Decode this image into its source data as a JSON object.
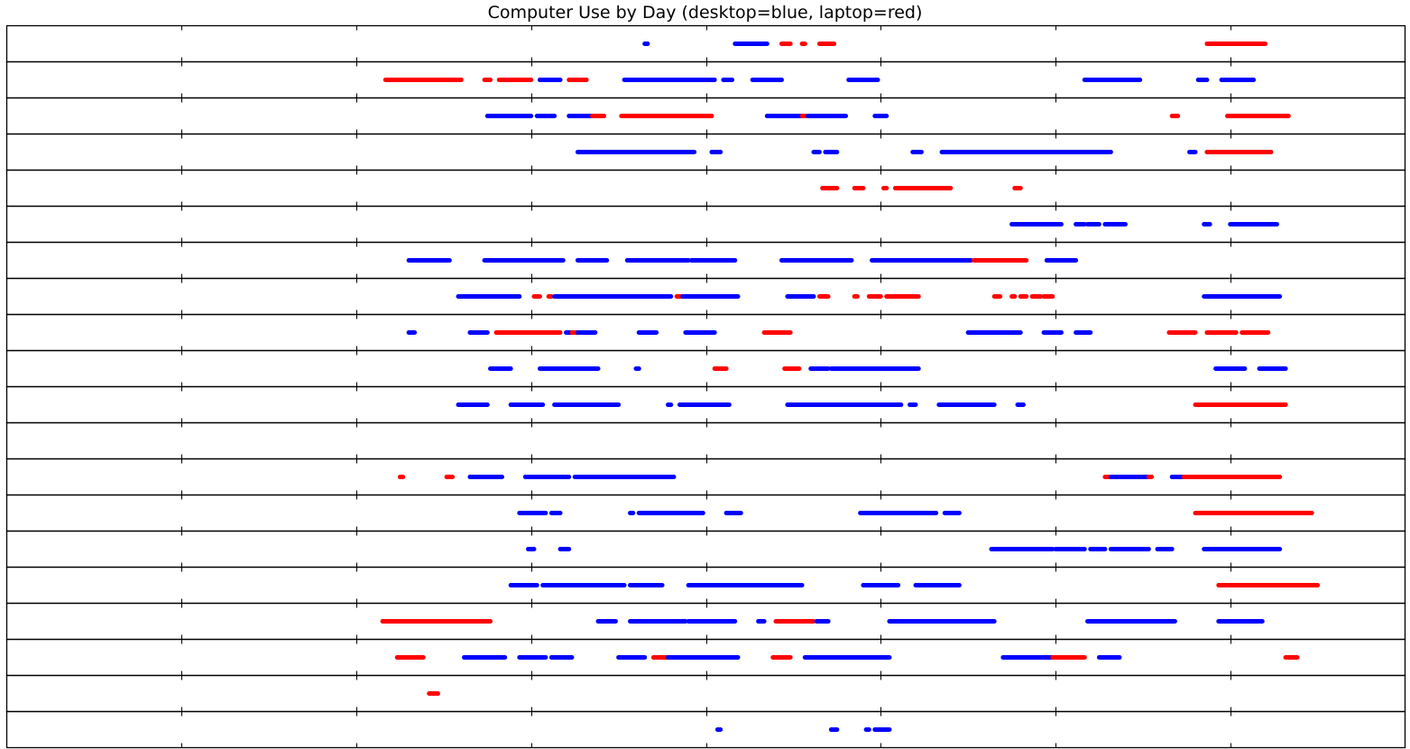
{
  "chart_data": {
    "type": "scatter",
    "title": "Computer Use by Day (desktop=blue, laptop=red)",
    "xlabel": "",
    "ylabel": "",
    "xlim": [
      0,
      24
    ],
    "x_unit": "hours",
    "tick_labels_shown": false,
    "grid": false,
    "legend": "none",
    "series": [
      {
        "name": "desktop",
        "color": "#0000ff"
      },
      {
        "name": "laptop",
        "color": "#ff0000"
      }
    ],
    "days": [
      {
        "segments": [
          {
            "s": "desktop",
            "x0": 10.95,
            "x1": 11.0
          },
          {
            "s": "desktop",
            "x0": 12.5,
            "x1": 13.05
          },
          {
            "s": "laptop",
            "x0": 13.3,
            "x1": 13.45
          },
          {
            "s": "laptop",
            "x0": 13.65,
            "x1": 13.7
          },
          {
            "s": "laptop",
            "x0": 13.95,
            "x1": 14.2
          },
          {
            "s": "laptop",
            "x0": 20.6,
            "x1": 21.6
          }
        ]
      },
      {
        "segments": [
          {
            "s": "laptop",
            "x0": 6.5,
            "x1": 7.8
          },
          {
            "s": "laptop",
            "x0": 8.2,
            "x1": 8.3
          },
          {
            "s": "laptop",
            "x0": 8.45,
            "x1": 9.0
          },
          {
            "s": "desktop",
            "x0": 9.15,
            "x1": 9.5
          },
          {
            "s": "laptop",
            "x0": 9.65,
            "x1": 9.95
          },
          {
            "s": "desktop",
            "x0": 10.6,
            "x1": 12.15
          },
          {
            "s": "desktop",
            "x0": 12.3,
            "x1": 12.45
          },
          {
            "s": "desktop",
            "x0": 12.8,
            "x1": 13.3
          },
          {
            "s": "desktop",
            "x0": 14.45,
            "x1": 14.95
          },
          {
            "s": "desktop",
            "x0": 18.5,
            "x1": 19.45
          },
          {
            "s": "desktop",
            "x0": 20.45,
            "x1": 20.6
          },
          {
            "s": "desktop",
            "x0": 20.85,
            "x1": 21.4
          }
        ]
      },
      {
        "segments": [
          {
            "s": "desktop",
            "x0": 8.25,
            "x1": 9.0
          },
          {
            "s": "desktop",
            "x0": 9.1,
            "x1": 9.4
          },
          {
            "s": "desktop",
            "x0": 9.65,
            "x1": 10.05
          },
          {
            "s": "laptop",
            "x0": 10.05,
            "x1": 10.25
          },
          {
            "s": "laptop",
            "x0": 10.55,
            "x1": 12.1
          },
          {
            "s": "desktop",
            "x0": 13.05,
            "x1": 13.65
          },
          {
            "s": "laptop",
            "x0": 13.65,
            "x1": 13.75
          },
          {
            "s": "desktop",
            "x0": 13.75,
            "x1": 14.4
          },
          {
            "s": "desktop",
            "x0": 14.9,
            "x1": 15.1
          },
          {
            "s": "laptop",
            "x0": 20.0,
            "x1": 20.1
          },
          {
            "s": "laptop",
            "x0": 20.95,
            "x1": 22.0
          }
        ]
      },
      {
        "segments": [
          {
            "s": "desktop",
            "x0": 9.8,
            "x1": 11.8
          },
          {
            "s": "desktop",
            "x0": 12.1,
            "x1": 12.25
          },
          {
            "s": "desktop",
            "x0": 13.85,
            "x1": 13.95
          },
          {
            "s": "desktop",
            "x0": 14.05,
            "x1": 14.25
          },
          {
            "s": "desktop",
            "x0": 15.55,
            "x1": 15.7
          },
          {
            "s": "desktop",
            "x0": 16.05,
            "x1": 18.95
          },
          {
            "s": "desktop",
            "x0": 20.3,
            "x1": 20.4
          },
          {
            "s": "laptop",
            "x0": 20.6,
            "x1": 21.7
          }
        ]
      },
      {
        "segments": [
          {
            "s": "laptop",
            "x0": 14.0,
            "x1": 14.25
          },
          {
            "s": "laptop",
            "x0": 14.55,
            "x1": 14.7
          },
          {
            "s": "laptop",
            "x0": 15.05,
            "x1": 15.1
          },
          {
            "s": "laptop",
            "x0": 15.25,
            "x1": 16.2
          },
          {
            "s": "laptop",
            "x0": 17.3,
            "x1": 17.4
          }
        ]
      },
      {
        "segments": [
          {
            "s": "desktop",
            "x0": 17.25,
            "x1": 18.1
          },
          {
            "s": "desktop",
            "x0": 18.35,
            "x1": 18.5
          },
          {
            "s": "desktop",
            "x0": 18.55,
            "x1": 18.75
          },
          {
            "s": "desktop",
            "x0": 18.85,
            "x1": 19.2
          },
          {
            "s": "desktop",
            "x0": 20.55,
            "x1": 20.65
          },
          {
            "s": "desktop",
            "x0": 21.0,
            "x1": 21.8
          }
        ]
      },
      {
        "segments": [
          {
            "s": "desktop",
            "x0": 6.9,
            "x1": 7.6
          },
          {
            "s": "desktop",
            "x0": 8.2,
            "x1": 9.55
          },
          {
            "s": "desktop",
            "x0": 9.8,
            "x1": 10.3
          },
          {
            "s": "desktop",
            "x0": 10.65,
            "x1": 11.7
          },
          {
            "s": "desktop",
            "x0": 11.75,
            "x1": 12.5
          },
          {
            "s": "desktop",
            "x0": 13.3,
            "x1": 14.5
          },
          {
            "s": "desktop",
            "x0": 14.85,
            "x1": 16.55
          },
          {
            "s": "laptop",
            "x0": 16.6,
            "x1": 17.5
          },
          {
            "s": "desktop",
            "x0": 17.85,
            "x1": 18.35
          }
        ]
      },
      {
        "segments": [
          {
            "s": "desktop",
            "x0": 7.75,
            "x1": 8.8
          },
          {
            "s": "laptop",
            "x0": 9.05,
            "x1": 9.15
          },
          {
            "s": "laptop",
            "x0": 9.3,
            "x1": 9.35
          },
          {
            "s": "desktop",
            "x0": 9.4,
            "x1": 11.4
          },
          {
            "s": "laptop",
            "x0": 11.5,
            "x1": 11.6
          },
          {
            "s": "desktop",
            "x0": 11.6,
            "x1": 12.55
          },
          {
            "s": "desktop",
            "x0": 13.4,
            "x1": 13.85
          },
          {
            "s": "laptop",
            "x0": 13.95,
            "x1": 14.1
          },
          {
            "s": "laptop",
            "x0": 14.55,
            "x1": 14.6
          },
          {
            "s": "laptop",
            "x0": 14.8,
            "x1": 15.0
          },
          {
            "s": "laptop",
            "x0": 15.1,
            "x1": 15.65
          },
          {
            "s": "laptop",
            "x0": 16.95,
            "x1": 17.05
          },
          {
            "s": "laptop",
            "x0": 17.25,
            "x1": 17.3
          },
          {
            "s": "laptop",
            "x0": 17.4,
            "x1": 17.5
          },
          {
            "s": "laptop",
            "x0": 17.6,
            "x1": 17.75
          },
          {
            "s": "laptop",
            "x0": 17.8,
            "x1": 17.95
          },
          {
            "s": "desktop",
            "x0": 20.55,
            "x1": 21.85
          }
        ]
      },
      {
        "segments": [
          {
            "s": "desktop",
            "x0": 6.9,
            "x1": 7.0
          },
          {
            "s": "desktop",
            "x0": 7.95,
            "x1": 8.25
          },
          {
            "s": "laptop",
            "x0": 8.4,
            "x1": 9.5
          },
          {
            "s": "desktop",
            "x0": 9.6,
            "x1": 9.7
          },
          {
            "s": "laptop",
            "x0": 9.7,
            "x1": 9.8
          },
          {
            "s": "desktop",
            "x0": 9.8,
            "x1": 10.1
          },
          {
            "s": "desktop",
            "x0": 10.85,
            "x1": 11.15
          },
          {
            "s": "desktop",
            "x0": 11.65,
            "x1": 12.15
          },
          {
            "s": "laptop",
            "x0": 13.0,
            "x1": 13.45
          },
          {
            "s": "desktop",
            "x0": 16.5,
            "x1": 17.4
          },
          {
            "s": "desktop",
            "x0": 17.8,
            "x1": 18.1
          },
          {
            "s": "desktop",
            "x0": 18.35,
            "x1": 18.6
          },
          {
            "s": "laptop",
            "x0": 19.95,
            "x1": 20.4
          },
          {
            "s": "laptop",
            "x0": 20.6,
            "x1": 21.1
          },
          {
            "s": "laptop",
            "x0": 21.2,
            "x1": 21.65
          }
        ]
      },
      {
        "segments": [
          {
            "s": "desktop",
            "x0": 8.3,
            "x1": 8.65
          },
          {
            "s": "desktop",
            "x0": 9.15,
            "x1": 10.15
          },
          {
            "s": "desktop",
            "x0": 10.8,
            "x1": 10.85
          },
          {
            "s": "laptop",
            "x0": 12.15,
            "x1": 12.35
          },
          {
            "s": "laptop",
            "x0": 13.35,
            "x1": 13.6
          },
          {
            "s": "desktop",
            "x0": 13.8,
            "x1": 14.1
          },
          {
            "s": "desktop",
            "x0": 14.15,
            "x1": 15.65
          },
          {
            "s": "desktop",
            "x0": 20.75,
            "x1": 21.25
          },
          {
            "s": "desktop",
            "x0": 21.5,
            "x1": 21.95
          }
        ]
      },
      {
        "segments": [
          {
            "s": "desktop",
            "x0": 7.75,
            "x1": 8.25
          },
          {
            "s": "desktop",
            "x0": 8.65,
            "x1": 9.2
          },
          {
            "s": "desktop",
            "x0": 9.4,
            "x1": 10.5
          },
          {
            "s": "desktop",
            "x0": 11.35,
            "x1": 11.4
          },
          {
            "s": "desktop",
            "x0": 11.55,
            "x1": 12.4
          },
          {
            "s": "desktop",
            "x0": 13.4,
            "x1": 15.35
          },
          {
            "s": "desktop",
            "x0": 15.5,
            "x1": 15.6
          },
          {
            "s": "desktop",
            "x0": 16.0,
            "x1": 16.95
          },
          {
            "s": "desktop",
            "x0": 17.35,
            "x1": 17.45
          },
          {
            "s": "laptop",
            "x0": 20.4,
            "x1": 21.95
          }
        ]
      },
      {
        "segments": []
      },
      {
        "segments": [
          {
            "s": "laptop",
            "x0": 6.75,
            "x1": 6.8
          },
          {
            "s": "laptop",
            "x0": 7.55,
            "x1": 7.65
          },
          {
            "s": "desktop",
            "x0": 7.95,
            "x1": 8.5
          },
          {
            "s": "desktop",
            "x0": 8.9,
            "x1": 9.65
          },
          {
            "s": "desktop",
            "x0": 9.75,
            "x1": 11.45
          },
          {
            "s": "laptop",
            "x0": 18.85,
            "x1": 18.95
          },
          {
            "s": "desktop",
            "x0": 18.95,
            "x1": 19.6
          },
          {
            "s": "laptop",
            "x0": 19.6,
            "x1": 19.65
          },
          {
            "s": "desktop",
            "x0": 20.0,
            "x1": 20.2
          },
          {
            "s": "laptop",
            "x0": 20.2,
            "x1": 21.85
          }
        ]
      },
      {
        "segments": [
          {
            "s": "desktop",
            "x0": 8.8,
            "x1": 9.25
          },
          {
            "s": "desktop",
            "x0": 9.35,
            "x1": 9.5
          },
          {
            "s": "desktop",
            "x0": 10.7,
            "x1": 10.75
          },
          {
            "s": "desktop",
            "x0": 10.85,
            "x1": 11.95
          },
          {
            "s": "desktop",
            "x0": 12.35,
            "x1": 12.6
          },
          {
            "s": "desktop",
            "x0": 14.65,
            "x1": 15.95
          },
          {
            "s": "desktop",
            "x0": 16.1,
            "x1": 16.35
          },
          {
            "s": "laptop",
            "x0": 20.4,
            "x1": 22.4
          }
        ]
      },
      {
        "segments": [
          {
            "s": "desktop",
            "x0": 8.95,
            "x1": 9.05
          },
          {
            "s": "desktop",
            "x0": 9.5,
            "x1": 9.65
          },
          {
            "s": "desktop",
            "x0": 16.9,
            "x1": 17.95
          },
          {
            "s": "desktop",
            "x0": 18.0,
            "x1": 18.5
          },
          {
            "s": "desktop",
            "x0": 18.6,
            "x1": 18.85
          },
          {
            "s": "desktop",
            "x0": 18.95,
            "x1": 19.6
          },
          {
            "s": "desktop",
            "x0": 19.75,
            "x1": 20.0
          },
          {
            "s": "desktop",
            "x0": 20.55,
            "x1": 21.85
          }
        ]
      },
      {
        "segments": [
          {
            "s": "desktop",
            "x0": 8.65,
            "x1": 9.1
          },
          {
            "s": "desktop",
            "x0": 9.2,
            "x1": 10.6
          },
          {
            "s": "desktop",
            "x0": 10.7,
            "x1": 11.25
          },
          {
            "s": "desktop",
            "x0": 11.7,
            "x1": 13.65
          },
          {
            "s": "desktop",
            "x0": 14.7,
            "x1": 15.3
          },
          {
            "s": "desktop",
            "x0": 15.6,
            "x1": 16.35
          },
          {
            "s": "laptop",
            "x0": 20.8,
            "x1": 22.5
          }
        ]
      },
      {
        "segments": [
          {
            "s": "laptop",
            "x0": 6.45,
            "x1": 8.3
          },
          {
            "s": "desktop",
            "x0": 10.15,
            "x1": 10.45
          },
          {
            "s": "desktop",
            "x0": 10.7,
            "x1": 11.65
          },
          {
            "s": "desktop",
            "x0": 11.7,
            "x1": 12.5
          },
          {
            "s": "desktop",
            "x0": 12.9,
            "x1": 13.0
          },
          {
            "s": "laptop",
            "x0": 13.2,
            "x1": 13.85
          },
          {
            "s": "desktop",
            "x0": 13.9,
            "x1": 14.1
          },
          {
            "s": "desktop",
            "x0": 15.15,
            "x1": 16.95
          },
          {
            "s": "desktop",
            "x0": 18.55,
            "x1": 20.05
          },
          {
            "s": "desktop",
            "x0": 20.8,
            "x1": 21.55
          }
        ]
      },
      {
        "segments": [
          {
            "s": "laptop",
            "x0": 6.7,
            "x1": 7.15
          },
          {
            "s": "desktop",
            "x0": 7.85,
            "x1": 8.55
          },
          {
            "s": "desktop",
            "x0": 8.8,
            "x1": 9.25
          },
          {
            "s": "desktop",
            "x0": 9.35,
            "x1": 9.7
          },
          {
            "s": "desktop",
            "x0": 10.5,
            "x1": 10.95
          },
          {
            "s": "laptop",
            "x0": 11.1,
            "x1": 11.35
          },
          {
            "s": "desktop",
            "x0": 11.35,
            "x1": 12.55
          },
          {
            "s": "laptop",
            "x0": 13.15,
            "x1": 13.45
          },
          {
            "s": "desktop",
            "x0": 13.7,
            "x1": 15.15
          },
          {
            "s": "desktop",
            "x0": 17.1,
            "x1": 17.95
          },
          {
            "s": "laptop",
            "x0": 17.95,
            "x1": 18.5
          },
          {
            "s": "desktop",
            "x0": 18.75,
            "x1": 19.1
          },
          {
            "s": "laptop",
            "x0": 21.95,
            "x1": 22.15
          }
        ]
      },
      {
        "segments": [
          {
            "s": "laptop",
            "x0": 7.25,
            "x1": 7.4
          }
        ]
      },
      {
        "segments": [
          {
            "s": "desktop",
            "x0": 12.2,
            "x1": 12.25
          },
          {
            "s": "desktop",
            "x0": 14.15,
            "x1": 14.25
          },
          {
            "s": "desktop",
            "x0": 14.75,
            "x1": 14.8
          },
          {
            "s": "desktop",
            "x0": 14.9,
            "x1": 15.15
          }
        ]
      }
    ]
  }
}
